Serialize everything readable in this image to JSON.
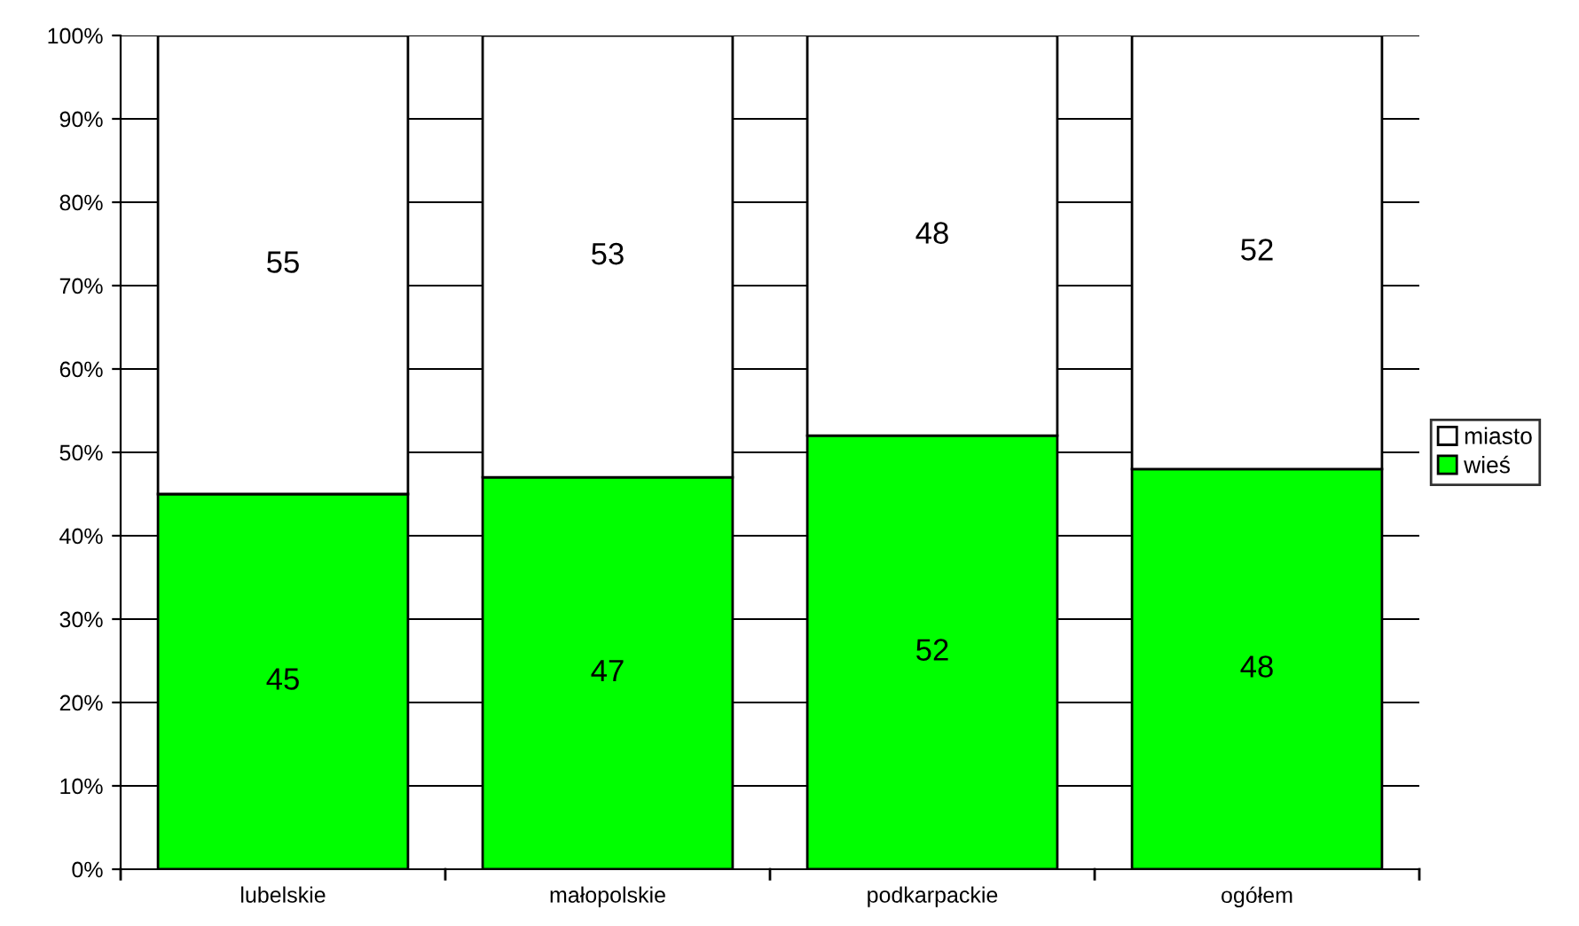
{
  "chart_data": {
    "type": "bar",
    "stacked": true,
    "categories": [
      "lubelskie",
      "małopolskie",
      "podkarpackie",
      "ogółem"
    ],
    "series": [
      {
        "name": "wieś",
        "color": "#00ff00",
        "values": [
          45,
          47,
          52,
          48
        ]
      },
      {
        "name": "miasto",
        "color": "#ffffff",
        "values": [
          55,
          53,
          48,
          52
        ]
      }
    ],
    "ylim": [
      0,
      100
    ],
    "yticks": [
      {
        "value": 0,
        "label": "0%"
      },
      {
        "value": 10,
        "label": "10%"
      },
      {
        "value": 20,
        "label": "20%"
      },
      {
        "value": 30,
        "label": "30%"
      },
      {
        "value": 40,
        "label": "40%"
      },
      {
        "value": 50,
        "label": "50%"
      },
      {
        "value": 60,
        "label": "60%"
      },
      {
        "value": 70,
        "label": "70%"
      },
      {
        "value": 80,
        "label": "80%"
      },
      {
        "value": 90,
        "label": "90%"
      },
      {
        "value": 100,
        "label": "100%"
      }
    ],
    "grid": "y",
    "legend": "right",
    "data_labels": true
  }
}
